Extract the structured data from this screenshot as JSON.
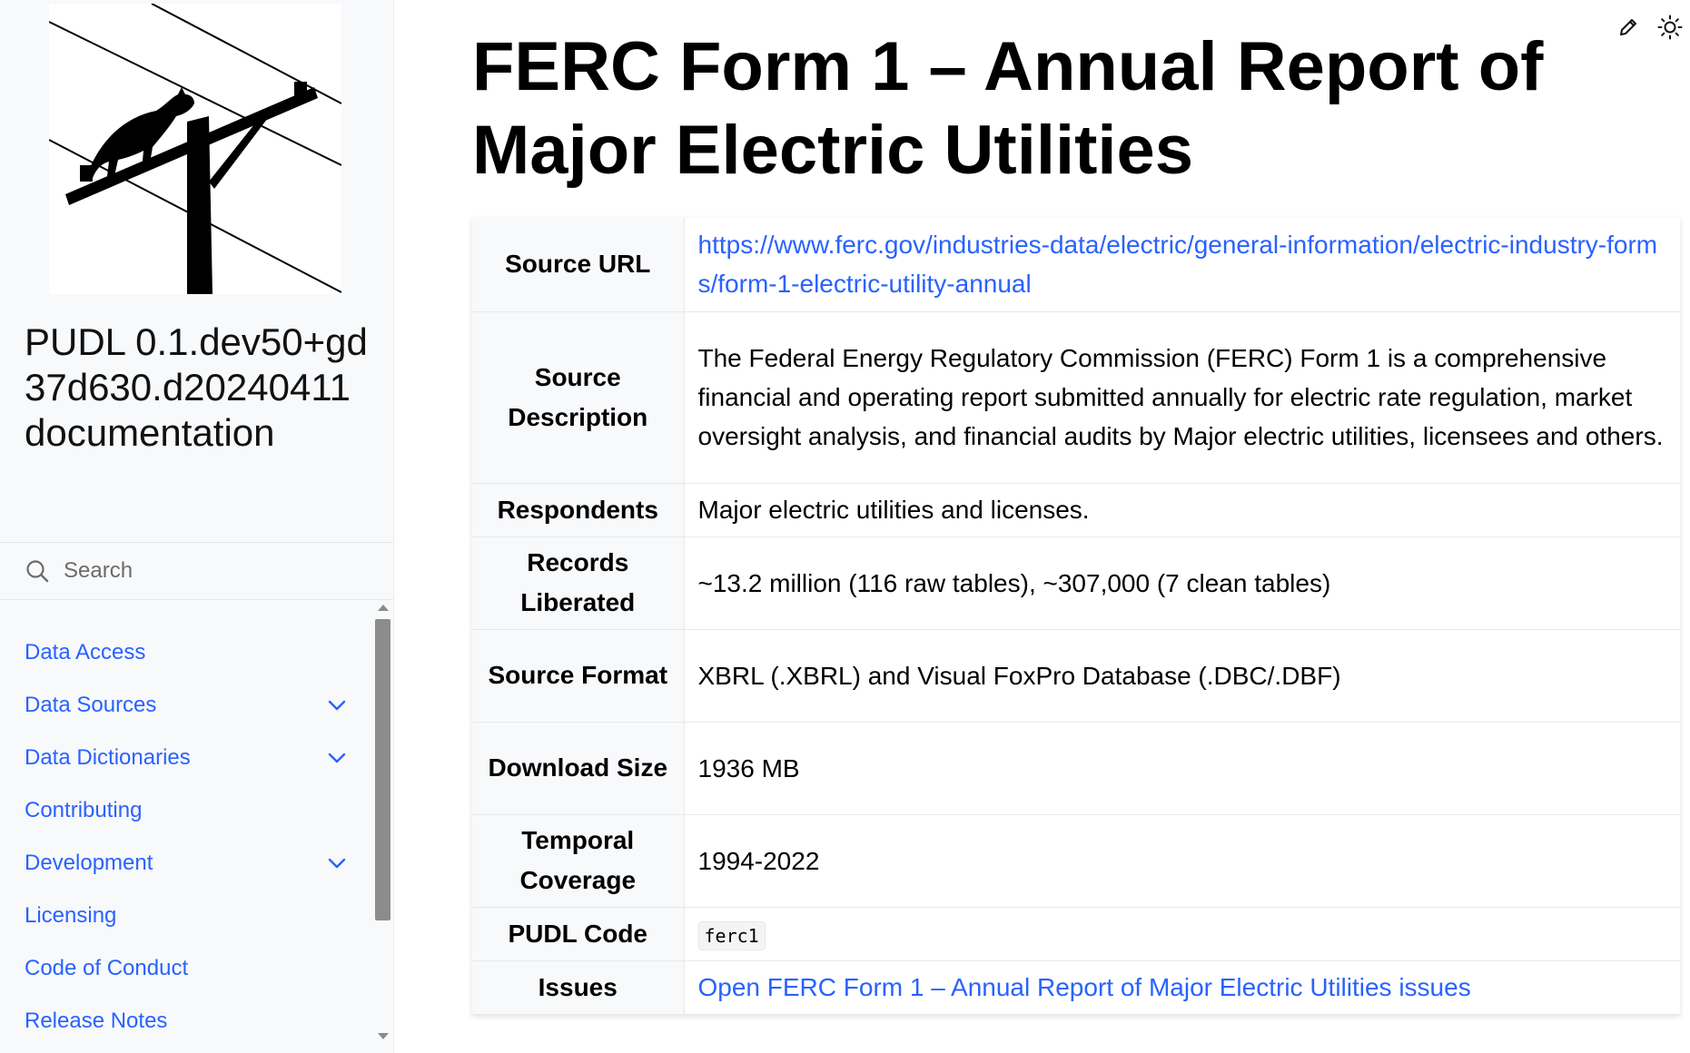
{
  "sidebar": {
    "logo": "pudl-logo",
    "project_title": "PUDL 0.1.dev50+gd37d630.d20240411 documentation",
    "search_placeholder": "Search",
    "items": [
      {
        "label": "Data Access",
        "expandable": false
      },
      {
        "label": "Data Sources",
        "expandable": true
      },
      {
        "label": "Data Dictionaries",
        "expandable": true
      },
      {
        "label": "Contributing",
        "expandable": false
      },
      {
        "label": "Development",
        "expandable": true
      },
      {
        "label": "Licensing",
        "expandable": false
      },
      {
        "label": "Code of Conduct",
        "expandable": false
      },
      {
        "label": "Release Notes",
        "expandable": false
      }
    ]
  },
  "header_icons": [
    "edit-icon",
    "theme-toggle-icon"
  ],
  "main": {
    "title": "FERC Form 1 – Annual Report of Major Electric Utilities",
    "rows": {
      "source_url": {
        "label": "Source URL",
        "value": "https://www.ferc.gov/industries-data/electric/general-information/electric-industry-forms/form-1-electric-utility-annual"
      },
      "source_description": {
        "label": "Source Description",
        "value": "The Federal Energy Regulatory Commission (FERC) Form 1 is a comprehensive financial and operating report submitted annually for electric rate regulation, market oversight analysis, and financial audits by Major electric utilities, licensees and others."
      },
      "respondents": {
        "label": "Respondents",
        "value": "Major electric utilities and licenses."
      },
      "records_liberated": {
        "label": "Records Liberated",
        "value": "~13.2 million (116 raw tables), ~307,000 (7 clean tables)"
      },
      "source_format": {
        "label": "Source Format",
        "value": "XBRL (.XBRL) and Visual FoxPro Database (.DBC/.DBF)"
      },
      "download_size": {
        "label": "Download Size",
        "value": "1936 MB"
      },
      "temporal_coverage": {
        "label": "Temporal Coverage",
        "value": "1994-2022"
      },
      "pudl_code": {
        "label": "PUDL Code",
        "value": "ferc1"
      },
      "issues": {
        "label": "Issues",
        "value": "Open FERC Form 1 – Annual Report of Major Electric Utilities issues"
      }
    }
  },
  "colors": {
    "link": "#2962ff",
    "sidebar_bg": "#f8f9fb"
  }
}
